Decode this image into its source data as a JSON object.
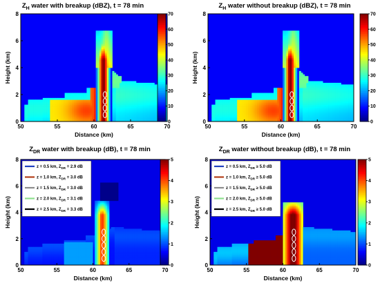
{
  "chart_data": [
    {
      "type": "heatmap",
      "title_main": "Z",
      "title_sub": "H",
      "title_rest": " water with breakup (dBZ), t = 78 min",
      "xlabel": "Distance (km)",
      "ylabel": "Height (km)",
      "xlim": [
        50,
        70
      ],
      "ylim": [
        0,
        8
      ],
      "xticks": [
        "50",
        "55",
        "60",
        "65",
        "70"
      ],
      "yticks": [
        "0",
        "2",
        "4",
        "6",
        "8"
      ],
      "colorbar": {
        "min": 0,
        "max": 70,
        "ticks": [
          "0",
          "10",
          "20",
          "30",
          "40",
          "50",
          "60",
          "70"
        ],
        "colormap": "jet"
      },
      "variable": "ZH",
      "markers": {
        "x": 61.5,
        "heights": [
          0.5,
          1.0,
          1.5,
          2.0
        ]
      },
      "legend": null
    },
    {
      "type": "heatmap",
      "title_main": "Z",
      "title_sub": "H",
      "title_rest": " water without breakup (dBZ), t = 78 min",
      "xlabel": "Distance (km)",
      "ylabel": "Height (km)",
      "xlim": [
        50,
        70
      ],
      "ylim": [
        0,
        8
      ],
      "xticks": [
        "50",
        "55",
        "60",
        "65",
        "70"
      ],
      "yticks": [
        "0",
        "2",
        "4",
        "6",
        "8"
      ],
      "colorbar": {
        "min": 0,
        "max": 70,
        "ticks": [
          "0",
          "10",
          "20",
          "30",
          "40",
          "50",
          "60",
          "70"
        ],
        "colormap": "jet"
      },
      "variable": "ZH",
      "markers": {
        "x": 61.5,
        "heights": [
          0.5,
          1.0,
          1.5,
          2.0
        ]
      },
      "legend": null
    },
    {
      "type": "heatmap",
      "title_main": "Z",
      "title_sub": "DR",
      "title_rest": " water with breakup (dB), t = 78 min",
      "xlabel": "Distance (km)",
      "ylabel": "Height (km)",
      "xlim": [
        50,
        70
      ],
      "ylim": [
        0,
        8
      ],
      "xticks": [
        "50",
        "55",
        "60",
        "65",
        "70"
      ],
      "yticks": [
        "0",
        "2",
        "4",
        "6",
        "8"
      ],
      "colorbar": {
        "min": 0,
        "max": 5,
        "ticks": [
          "0",
          "1",
          "2",
          "3",
          "4",
          "5"
        ],
        "colormap": "jet"
      },
      "variable": "ZDR_breakup",
      "markers": {
        "x": 61.5,
        "heights": [
          0.5,
          1.0,
          1.5,
          2.0,
          2.5
        ]
      },
      "legend": {
        "placement": "top-left",
        "entries": [
          {
            "z": "z = 0.5 km, Z",
            "sub": "DR",
            "val": " = 2.9 dB",
            "color": "#1f3fbf"
          },
          {
            "z": "z = 1.0 km, Z",
            "sub": "DR",
            "val": " = 3.0 dB",
            "color": "#b3401a"
          },
          {
            "z": "z = 1.5 km, Z",
            "sub": "DR",
            "val": " = 3.0 dB",
            "color": "#8c8c8c"
          },
          {
            "z": "z = 2.0 km, Z",
            "sub": "DR",
            "val": " = 3.1 dB",
            "color": "#8ee08e"
          },
          {
            "z": "z = 2.5 km, Z",
            "sub": "DR",
            "val": " = 3.3 dB",
            "color": "#000000"
          }
        ]
      }
    },
    {
      "type": "heatmap",
      "title_main": "Z",
      "title_sub": "DR",
      "title_rest": " water without breakup (dB), t = 78 min",
      "xlabel": "Distance (km)",
      "ylabel": "Height (km)",
      "xlim": [
        50,
        70
      ],
      "ylim": [
        0,
        8
      ],
      "xticks": [
        "50",
        "55",
        "60",
        "65",
        "70"
      ],
      "yticks": [
        "0",
        "2",
        "4",
        "6",
        "8"
      ],
      "colorbar": {
        "min": 0,
        "max": 5,
        "ticks": [
          "0",
          "1",
          "2",
          "3",
          "4",
          "5"
        ],
        "colormap": "jet"
      },
      "variable": "ZDR_nobreakup",
      "markers": {
        "x": 61.5,
        "heights": [
          0.5,
          1.0,
          1.5,
          2.0,
          2.5
        ]
      },
      "legend": {
        "placement": "top-left",
        "entries": [
          {
            "z": "z = 0.5 km, Z",
            "sub": "DR",
            "val": " ≥ 5.0 dB",
            "color": "#1f3fbf"
          },
          {
            "z": "z = 1.0 km, Z",
            "sub": "DR",
            "val": " ≥ 5.0 dB",
            "color": "#b3401a"
          },
          {
            "z": "z = 1.5 km, Z",
            "sub": "DR",
            "val": " ≥ 5.0 dB",
            "color": "#8c8c8c"
          },
          {
            "z": "z = 2.0 km, Z",
            "sub": "DR",
            "val": " ≥ 5.0 dB",
            "color": "#8ee08e"
          },
          {
            "z": "z = 2.5 km, Z",
            "sub": "DR",
            "val": " ≥ 5.0 dB",
            "color": "#000000"
          }
        ]
      }
    }
  ]
}
